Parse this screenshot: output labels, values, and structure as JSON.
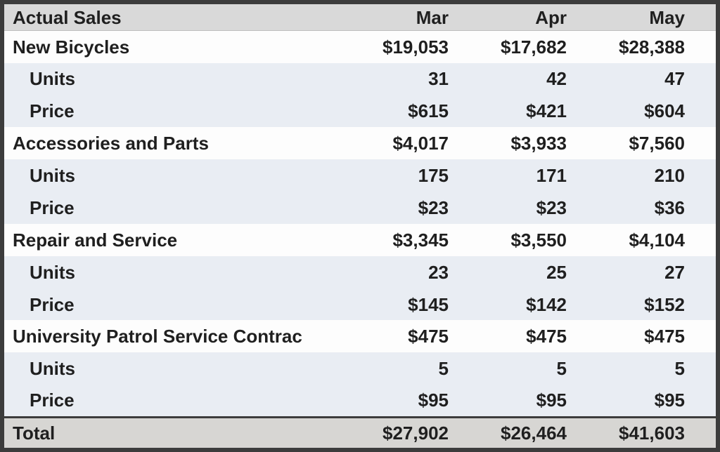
{
  "title": "Actual Sales",
  "columns": [
    "Mar",
    "Apr",
    "May"
  ],
  "labels": {
    "units": "Units",
    "price": "Price"
  },
  "sections": [
    {
      "name": "New Bicycles",
      "sales": [
        "$19,053",
        "$17,682",
        "$28,388"
      ],
      "units": [
        "31",
        "42",
        "47"
      ],
      "price": [
        "$615",
        "$421",
        "$604"
      ]
    },
    {
      "name": "Accessories and Parts",
      "sales": [
        "$4,017",
        "$3,933",
        "$7,560"
      ],
      "units": [
        "175",
        "171",
        "210"
      ],
      "price": [
        "$23",
        "$23",
        "$36"
      ]
    },
    {
      "name": "Repair and Service",
      "sales": [
        "$3,345",
        "$3,550",
        "$4,104"
      ],
      "units": [
        "23",
        "25",
        "27"
      ],
      "price": [
        "$145",
        "$142",
        "$152"
      ]
    },
    {
      "name": "University Patrol Service Contrac",
      "sales": [
        "$475",
        "$475",
        "$475"
      ],
      "units": [
        "5",
        "5",
        "5"
      ],
      "price": [
        "$95",
        "$95",
        "$95"
      ]
    }
  ],
  "total": {
    "label": "Total",
    "values": [
      "$27,902",
      "$26,464",
      "$41,603"
    ]
  },
  "colors": {
    "border": "#3c3c3c",
    "header_bg": "#d9d9d9",
    "band_bg": "#e9edf3",
    "white_bg": "#fdfdfd",
    "total_bg": "#d7d6d3",
    "text": "#1f1f1f"
  }
}
